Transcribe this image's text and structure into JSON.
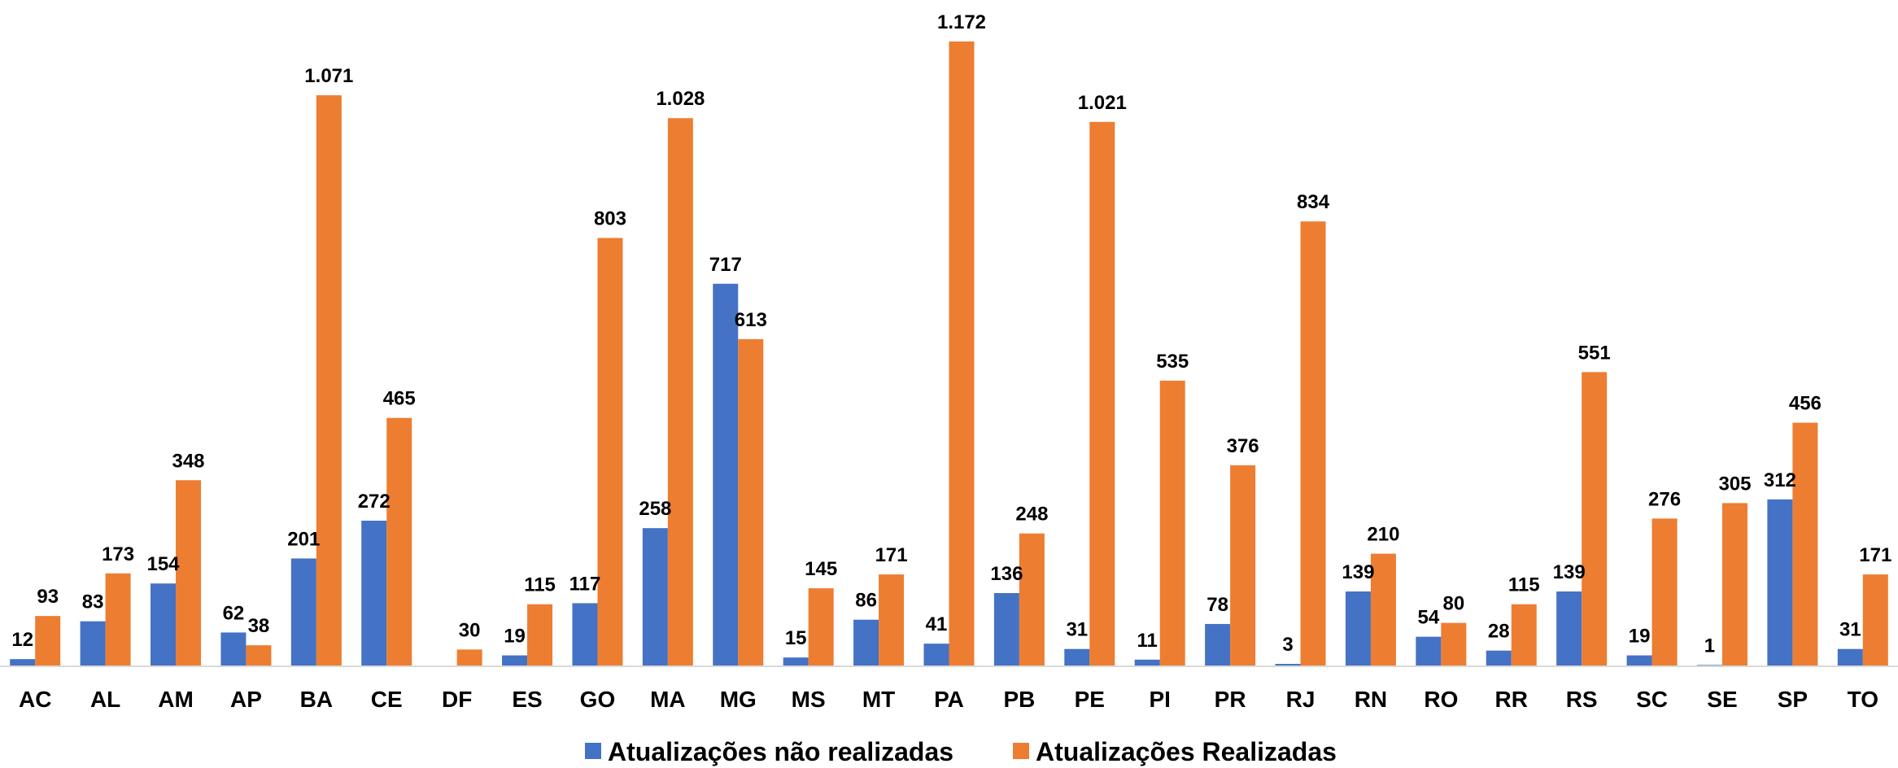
{
  "chart_data": {
    "type": "bar",
    "categories": [
      "AC",
      "AL",
      "AM",
      "AP",
      "BA",
      "CE",
      "DF",
      "ES",
      "GO",
      "MA",
      "MG",
      "MS",
      "MT",
      "PA",
      "PB",
      "PE",
      "PI",
      "PR",
      "RJ",
      "RN",
      "RO",
      "RR",
      "RS",
      "SC",
      "SE",
      "SP",
      "TO"
    ],
    "series": [
      {
        "name": "Atualizações não realizadas",
        "color": "#4472C4",
        "values": [
          12,
          83,
          154,
          62,
          201,
          272,
          null,
          19,
          117,
          258,
          717,
          15,
          86,
          41,
          136,
          31,
          11,
          78,
          3,
          139,
          54,
          28,
          139,
          19,
          1,
          312,
          31
        ],
        "labels": [
          "12",
          "83",
          "154",
          "62",
          "201",
          "272",
          "",
          "19",
          "117",
          "258",
          "717",
          "15",
          "86",
          "41",
          "136",
          "31",
          "11",
          "78",
          "3",
          "139",
          "54",
          "28",
          "139",
          "19",
          "1",
          "312",
          "31"
        ]
      },
      {
        "name": "Atualizações Realizadas",
        "color": "#ED7D31",
        "values": [
          93,
          173,
          348,
          38,
          1071,
          465,
          30,
          115,
          803,
          1028,
          613,
          145,
          171,
          1172,
          248,
          1021,
          535,
          376,
          834,
          210,
          80,
          115,
          551,
          276,
          305,
          456,
          171
        ],
        "labels": [
          "93",
          "173",
          "348",
          "38",
          "1.071",
          "465",
          "30",
          "115",
          "803",
          "1.028",
          "613",
          "145",
          "171",
          "1.172",
          "248",
          "1.021",
          "535",
          "376",
          "834",
          "210",
          "80",
          "115",
          "551",
          "276",
          "305",
          "456",
          "171"
        ]
      }
    ],
    "ylim": [
      0,
      1172
    ],
    "grid": false,
    "legend": "bottom",
    "xlabel": "",
    "ylabel": ""
  }
}
